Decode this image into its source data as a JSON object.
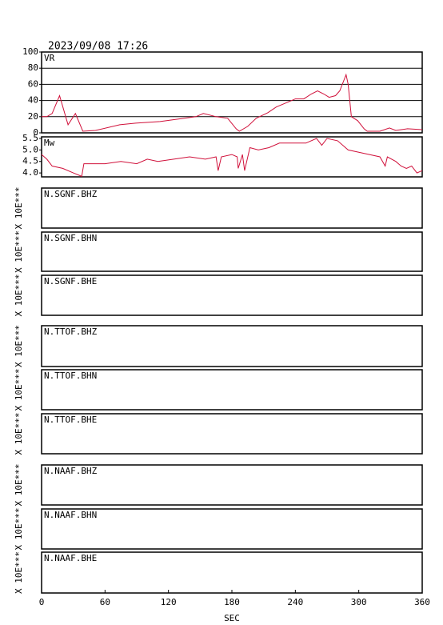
{
  "chart_data": [
    {
      "type": "line",
      "title": "2023/09/08 17:26",
      "label": "VR",
      "x": [
        0,
        5,
        10,
        17,
        25,
        32,
        39,
        51,
        74,
        89,
        112,
        135,
        146,
        153,
        165,
        176,
        184,
        187,
        195,
        203,
        214,
        222,
        233,
        240,
        248,
        255,
        261,
        267,
        272,
        278,
        282,
        288,
        290,
        293,
        299,
        305,
        308,
        320,
        329,
        335,
        346,
        360
      ],
      "series": [
        {
          "color": "#d0103a",
          "values": [
            20,
            20,
            24,
            46,
            10,
            24,
            2,
            3,
            10,
            12,
            14,
            18,
            20,
            24,
            20,
            18,
            5,
            2,
            8,
            18,
            25,
            32,
            38,
            42,
            42,
            48,
            52,
            48,
            44,
            46,
            52,
            72,
            60,
            20,
            15,
            5,
            2,
            2,
            6,
            3,
            5,
            4
          ]
        }
      ],
      "xlim": [
        0,
        360
      ],
      "ylim": [
        0,
        100
      ],
      "yticks": [
        0,
        20,
        40,
        60,
        80,
        100
      ],
      "grid": true
    },
    {
      "type": "line",
      "label": "Mw",
      "x": [
        0,
        5,
        10,
        20,
        30,
        38,
        40,
        60,
        75,
        90,
        100,
        110,
        125,
        140,
        155,
        165,
        167,
        170,
        180,
        185,
        186,
        190,
        192,
        197,
        205,
        215,
        225,
        250,
        260,
        265,
        270,
        280,
        290,
        300,
        310,
        320,
        325,
        327,
        335,
        340,
        345,
        350,
        355,
        360
      ],
      "series": [
        {
          "color": "#d0103a",
          "values": [
            4.8,
            4.6,
            4.3,
            4.2,
            4.0,
            3.85,
            4.4,
            4.4,
            4.5,
            4.4,
            4.6,
            4.5,
            4.6,
            4.7,
            4.6,
            4.7,
            4.1,
            4.7,
            4.8,
            4.7,
            4.2,
            4.8,
            4.1,
            5.1,
            5.0,
            5.1,
            5.3,
            5.3,
            5.5,
            5.2,
            5.5,
            5.4,
            5.0,
            4.9,
            4.8,
            4.7,
            4.3,
            4.7,
            4.5,
            4.3,
            4.2,
            4.3,
            4.0,
            4.1
          ]
        }
      ],
      "xlim": [
        0,
        360
      ],
      "ylim": [
        3.83,
        5.57
      ],
      "yticks": [
        {
          "value": 4,
          "label": "4.0"
        },
        4.5,
        {
          "value": 5,
          "label": "5.0"
        },
        5.5
      ],
      "grid": false
    },
    {
      "type": "waveform",
      "xlabel": "SEC",
      "xlim": [
        0,
        360
      ],
      "xticks": [
        0,
        60,
        120,
        180,
        240,
        300,
        360
      ],
      "panels": [
        {
          "station": "N.SGNF.BHZ",
          "scale_label": "X 10E***"
        },
        {
          "station": "N.SGNF.BHN",
          "scale_label": "X 10E***"
        },
        {
          "station": "N.SGNF.BHE",
          "scale_label": "X 10E***"
        },
        {
          "station": "N.TTOF.BHZ",
          "scale_label": "X 10E***"
        },
        {
          "station": "N.TTOF.BHN",
          "scale_label": "X 10E***"
        },
        {
          "station": "N.TTOF.BHE",
          "scale_label": "X 10E***"
        },
        {
          "station": "N.NAAF.BHZ",
          "scale_label": "X 10E***"
        },
        {
          "station": "N.NAAF.BHN",
          "scale_label": "X 10E***"
        },
        {
          "station": "N.NAAF.BHE",
          "scale_label": "X 10E***"
        }
      ]
    }
  ]
}
